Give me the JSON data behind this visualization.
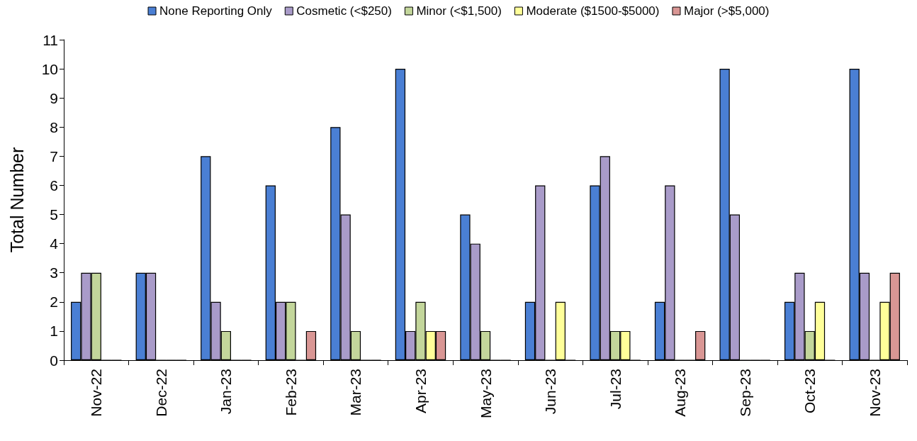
{
  "chart_data": {
    "type": "bar",
    "ylabel": "Total Number",
    "categories": [
      "Nov-22",
      "Dec-22",
      "Jan-23",
      "Feb-23",
      "Mar-23",
      "Apr-23",
      "May-23",
      "Jun-23",
      "Jul-23",
      "Aug-23",
      "Sep-23",
      "Oct-23",
      "Nov-23"
    ],
    "series": [
      {
        "name": "None Reporting Only",
        "color": "#4a7fd4",
        "values": [
          2,
          3,
          7,
          6,
          8,
          10,
          5,
          2,
          6,
          2,
          10,
          2,
          10
        ]
      },
      {
        "name": "Cosmetic (<$250)",
        "color": "#a99bc9",
        "values": [
          3,
          3,
          2,
          2,
          5,
          1,
          4,
          6,
          7,
          6,
          5,
          3,
          3
        ]
      },
      {
        "name": "Minor (<$1,500)",
        "color": "#c3d69b",
        "values": [
          3,
          0,
          1,
          2,
          1,
          2,
          1,
          0,
          1,
          0,
          0,
          1,
          0
        ]
      },
      {
        "name": "Moderate ($1500-$5000)",
        "color": "#ffff99",
        "values": [
          0,
          0,
          0,
          0,
          0,
          1,
          0,
          2,
          1,
          0,
          0,
          2,
          2
        ]
      },
      {
        "name": "Major (>$5,000)",
        "color": "#d99694",
        "values": [
          0,
          0,
          0,
          1,
          0,
          1,
          0,
          0,
          0,
          1,
          0,
          0,
          3
        ]
      }
    ],
    "ylim": [
      0,
      11
    ],
    "yticks": [
      0,
      1,
      2,
      3,
      4,
      5,
      6,
      7,
      8,
      9,
      10,
      11
    ],
    "grid": false,
    "legend": "top"
  }
}
